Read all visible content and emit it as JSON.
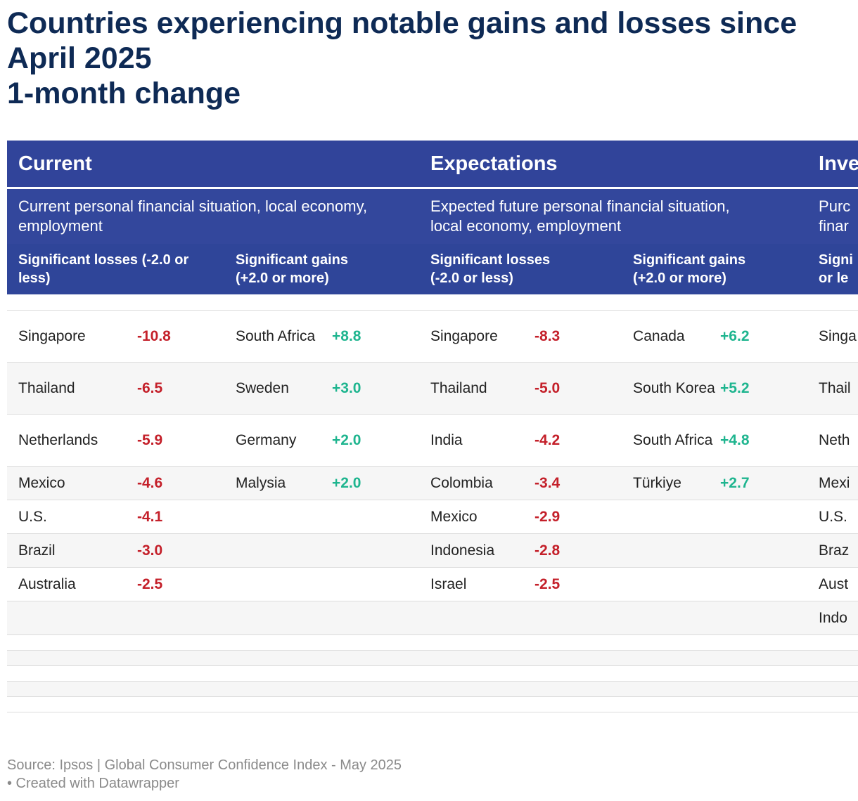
{
  "title": "Countries experiencing notable gains and losses since April 2025\n1-month change",
  "chart_data": {
    "type": "table",
    "groups": [
      {
        "name": "Current",
        "description": "Current personal financial situation, local economy, employment",
        "losses_header": "Significant losses (-2.0 or less)",
        "gains_header": "Significant gains (+2.0 or more)"
      },
      {
        "name": "Expectations",
        "description": "Expected future personal financial situation, local economy, employment",
        "losses_header": "Significant losses (-2.0 or less)",
        "gains_header": "Significant gains (+2.0 or more)"
      },
      {
        "name": "Inve",
        "description": "Purc\nfinar",
        "losses_header": "Signi\nor le",
        "gains_header": ""
      }
    ],
    "rows": [
      {
        "cur_loss_country": "Singapore",
        "cur_loss_value": "-10.8",
        "cur_gain_country": "South Africa",
        "cur_gain_value": "+8.8",
        "exp_loss_country": "Singapore",
        "exp_loss_value": "-8.3",
        "exp_gain_country": "Canada",
        "exp_gain_value": "+6.2",
        "inv_country": "Singa"
      },
      {
        "cur_loss_country": "Thailand",
        "cur_loss_value": "-6.5",
        "cur_gain_country": "Sweden",
        "cur_gain_value": "+3.0",
        "exp_loss_country": "Thailand",
        "exp_loss_value": "-5.0",
        "exp_gain_country": "South Korea",
        "exp_gain_value": "+5.2",
        "inv_country": "Thail"
      },
      {
        "cur_loss_country": "Netherlands",
        "cur_loss_value": "-5.9",
        "cur_gain_country": "Germany",
        "cur_gain_value": "+2.0",
        "exp_loss_country": "India",
        "exp_loss_value": "-4.2",
        "exp_gain_country": "South Africa",
        "exp_gain_value": "+4.8",
        "inv_country": "Neth"
      },
      {
        "cur_loss_country": "Mexico",
        "cur_loss_value": "-4.6",
        "cur_gain_country": "Malysia",
        "cur_gain_value": "+2.0",
        "exp_loss_country": "Colombia",
        "exp_loss_value": "-3.4",
        "exp_gain_country": "Türkiye",
        "exp_gain_value": "+2.7",
        "inv_country": "Mexi"
      },
      {
        "cur_loss_country": "U.S.",
        "cur_loss_value": "-4.1",
        "cur_gain_country": "",
        "cur_gain_value": "",
        "exp_loss_country": "Mexico",
        "exp_loss_value": "-2.9",
        "exp_gain_country": "",
        "exp_gain_value": "",
        "inv_country": "U.S."
      },
      {
        "cur_loss_country": "Brazil",
        "cur_loss_value": "-3.0",
        "cur_gain_country": "",
        "cur_gain_value": "",
        "exp_loss_country": "Indonesia",
        "exp_loss_value": "-2.8",
        "exp_gain_country": "",
        "exp_gain_value": "",
        "inv_country": "Braz"
      },
      {
        "cur_loss_country": "Australia",
        "cur_loss_value": "-2.5",
        "cur_gain_country": "",
        "cur_gain_value": "",
        "exp_loss_country": "Israel",
        "exp_loss_value": "-2.5",
        "exp_gain_country": "",
        "exp_gain_value": "",
        "inv_country": "Aust"
      },
      {
        "cur_loss_country": "",
        "cur_loss_value": "",
        "cur_gain_country": "",
        "cur_gain_value": "",
        "exp_loss_country": "",
        "exp_loss_value": "",
        "exp_gain_country": "",
        "exp_gain_value": "",
        "inv_country": "Indo"
      }
    ],
    "empty_rows": 5,
    "colors": {
      "header": "#31449a",
      "negative": "#c4202a",
      "positive": "#1fb58f"
    }
  },
  "footer": {
    "source": "Source: Ipsos | Global Consumer Confidence Index - May 2025",
    "credit": "• Created with Datawrapper"
  }
}
